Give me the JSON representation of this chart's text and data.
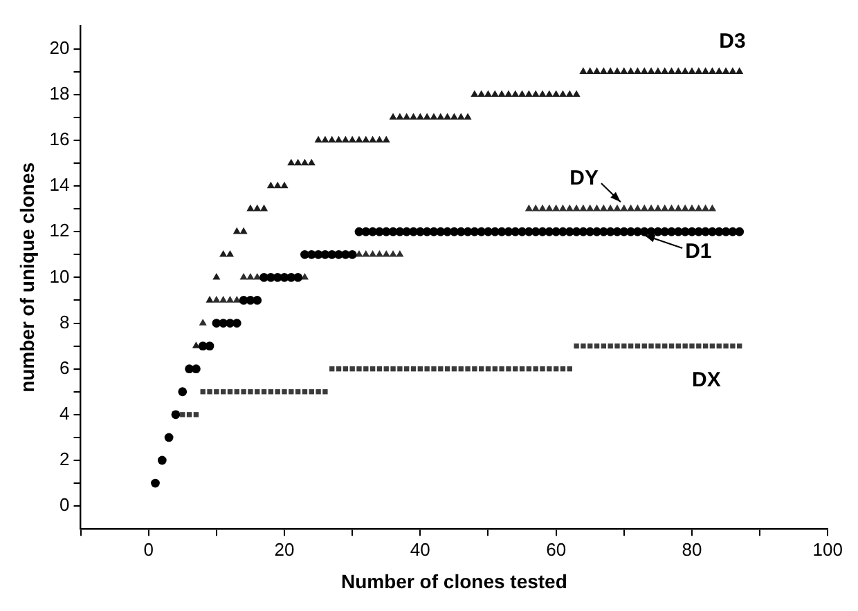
{
  "chart_data": {
    "type": "scatter",
    "xlabel": "Number of clones tested",
    "ylabel": "number of unique clones",
    "x": [
      1,
      2,
      3,
      4,
      5,
      6,
      7,
      8,
      9,
      10,
      11,
      12,
      13,
      14,
      15,
      16,
      17,
      18,
      19,
      20,
      21,
      22,
      23,
      24,
      25,
      26,
      27,
      28,
      29,
      30,
      31,
      32,
      33,
      34,
      35,
      36,
      37,
      38,
      39,
      40,
      41,
      42,
      43,
      44,
      45,
      46,
      47,
      48,
      49,
      50,
      51,
      52,
      53,
      54,
      55,
      56,
      57,
      58,
      59,
      60,
      61,
      62,
      63,
      64,
      65,
      66,
      67,
      68,
      69,
      70,
      71,
      72,
      73,
      74,
      75,
      76,
      77,
      78,
      79,
      80,
      81,
      82,
      83,
      84,
      85,
      86,
      87
    ],
    "series": [
      {
        "name": "D1",
        "color": "#000000",
        "marker": "circle",
        "values": [
          1,
          2,
          3,
          4,
          5,
          6,
          6,
          7,
          7,
          8,
          8,
          8,
          8,
          9,
          9,
          9,
          10,
          10,
          10,
          10,
          10,
          10,
          11,
          11,
          11,
          11,
          11,
          11,
          11,
          11,
          12,
          12,
          12,
          12,
          12,
          12,
          12,
          12,
          12,
          12,
          12,
          12,
          12,
          12,
          12,
          12,
          12,
          12,
          12,
          12,
          12,
          12,
          12,
          12,
          12,
          12,
          12,
          12,
          12,
          12,
          12,
          12,
          12,
          12,
          12,
          12,
          12,
          12,
          12,
          12,
          12,
          12,
          12,
          12,
          12,
          12,
          12,
          12,
          12,
          12,
          12,
          12,
          12,
          12,
          12,
          12,
          12
        ]
      },
      {
        "name": "D3",
        "color": "#1c1c1c",
        "marker": "triangle",
        "values": [
          null,
          null,
          null,
          null,
          null,
          null,
          7,
          null,
          9,
          10,
          11,
          11,
          12,
          12,
          13,
          13,
          13,
          14,
          14,
          14,
          15,
          15,
          15,
          15,
          16,
          16,
          16,
          16,
          16,
          16,
          16,
          16,
          16,
          16,
          16,
          17,
          17,
          17,
          17,
          17,
          17,
          17,
          17,
          17,
          17,
          17,
          17,
          18,
          18,
          18,
          18,
          18,
          18,
          18,
          18,
          18,
          18,
          18,
          18,
          18,
          18,
          18,
          18,
          19,
          19,
          19,
          19,
          19,
          19,
          19,
          19,
          19,
          19,
          19,
          19,
          19,
          19,
          19,
          19,
          19,
          19,
          19,
          19,
          19,
          19,
          19,
          19
        ]
      },
      {
        "name": "DY",
        "color": "#2e2e2e",
        "marker": "triangle",
        "values": [
          null,
          null,
          null,
          null,
          null,
          null,
          null,
          8,
          null,
          9,
          9,
          9,
          9,
          10,
          10,
          10,
          null,
          null,
          null,
          null,
          null,
          null,
          10,
          null,
          null,
          null,
          null,
          null,
          null,
          null,
          11,
          11,
          11,
          11,
          11,
          11,
          11,
          null,
          null,
          null,
          null,
          null,
          null,
          null,
          null,
          null,
          null,
          null,
          null,
          null,
          null,
          null,
          null,
          null,
          null,
          13,
          13,
          13,
          13,
          13,
          13,
          13,
          13,
          13,
          13,
          13,
          13,
          13,
          13,
          13,
          13,
          13,
          13,
          13,
          13,
          13,
          13,
          13,
          13,
          13,
          13,
          13,
          13,
          null,
          null,
          null,
          null
        ]
      },
      {
        "name": "DX",
        "color": "#3a3a3a",
        "marker": "square",
        "values": [
          null,
          null,
          null,
          null,
          4,
          4,
          4,
          5,
          5,
          5,
          5,
          5,
          5,
          5,
          5,
          5,
          5,
          5,
          5,
          5,
          5,
          5,
          5,
          5,
          5,
          5,
          6,
          6,
          6,
          6,
          6,
          6,
          6,
          6,
          6,
          6,
          6,
          6,
          6,
          6,
          6,
          6,
          6,
          6,
          6,
          6,
          6,
          6,
          6,
          6,
          6,
          6,
          6,
          6,
          6,
          6,
          6,
          6,
          6,
          6,
          6,
          6,
          7,
          7,
          7,
          7,
          7,
          7,
          7,
          7,
          7,
          7,
          7,
          7,
          7,
          7,
          7,
          7,
          7,
          7,
          7,
          7,
          7,
          7,
          7,
          7,
          7
        ]
      }
    ],
    "xlim": [
      -10,
      100
    ],
    "xticks": [
      {
        "value": -10,
        "label": null
      },
      0,
      {
        "value": 10,
        "label": null
      },
      20,
      {
        "value": 30,
        "label": null
      },
      40,
      {
        "value": 50,
        "label": null
      },
      60,
      {
        "value": 70,
        "label": null
      },
      80,
      {
        "value": 90,
        "label": null
      },
      100
    ],
    "ylim": [
      -1,
      21
    ],
    "yticks": [
      0,
      {
        "value": 1,
        "label": null
      },
      2,
      {
        "value": 3,
        "label": null
      },
      4,
      {
        "value": 5,
        "label": null
      },
      6,
      {
        "value": 7,
        "label": null
      },
      8,
      {
        "value": 9,
        "label": null
      },
      10,
      {
        "value": 11,
        "label": null
      },
      12,
      {
        "value": 13,
        "label": null
      },
      14,
      {
        "value": 15,
        "label": null
      },
      16,
      {
        "value": 17,
        "label": null
      },
      18,
      {
        "value": 19,
        "label": null
      },
      20
    ],
    "grid": false
  }
}
